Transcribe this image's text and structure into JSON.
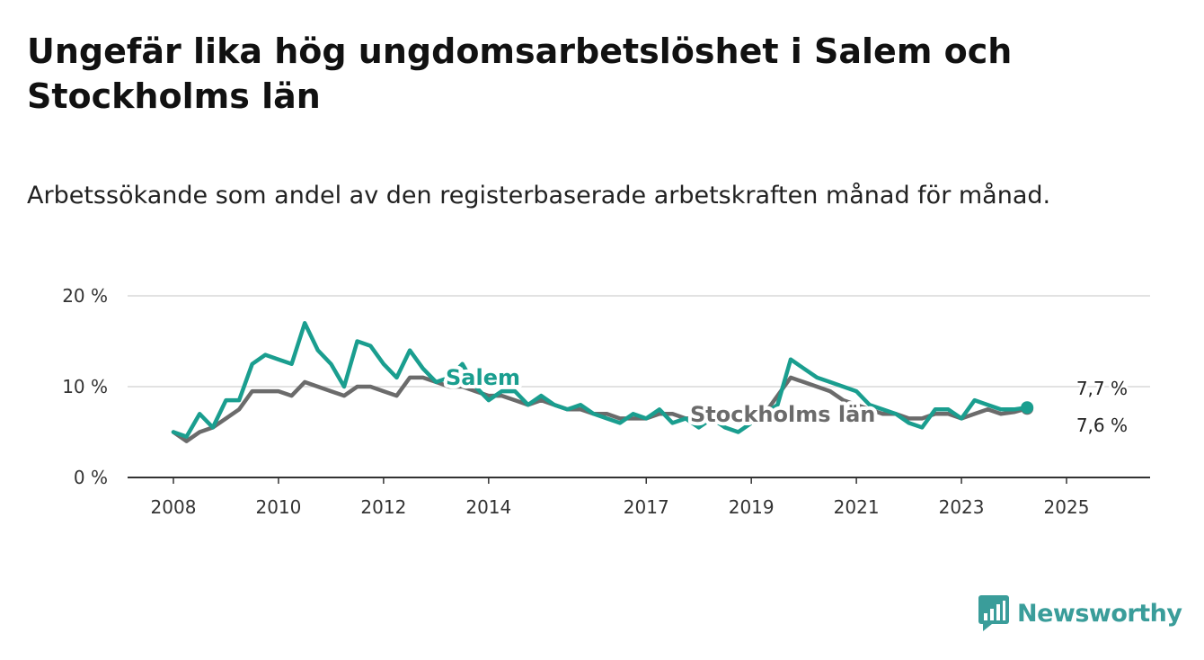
{
  "title": "Ungefär lika hög ungdomsarbetslöshet i Salem och Stockholms län",
  "subtitle": "Arbetssökande som andel av den registerbaserade arbetskraften månad för månad.",
  "brand": {
    "name": "Newsworthy",
    "color": "#3a9d9a",
    "icon": "bar-chart-speech-bubble-icon"
  },
  "chart_data": {
    "type": "line",
    "x_start": 2008.0,
    "x_step": 0.25,
    "xlim": [
      2008.0,
      2025.75
    ],
    "ylim": [
      0,
      20
    ],
    "y_ticks": [
      0,
      10,
      20
    ],
    "y_tick_labels": [
      "0 %",
      "10 %",
      "20 %"
    ],
    "x_ticks": [
      2008,
      2010,
      2012,
      2014,
      2017,
      2019,
      2021,
      2023,
      2025
    ],
    "x_tick_labels": [
      "2008",
      "2010",
      "2012",
      "2014",
      "2017",
      "2019",
      "2021",
      "2023",
      "2025"
    ],
    "grid": true,
    "series": [
      {
        "name": "Salem",
        "color": "#1a9e8f",
        "values": [
          5.0,
          4.5,
          7.0,
          5.5,
          8.5,
          8.5,
          12.5,
          13.5,
          13.0,
          12.5,
          17.0,
          14.0,
          12.5,
          10.0,
          15.0,
          14.5,
          12.5,
          11.0,
          14.0,
          12.0,
          10.5,
          11.0,
          12.5,
          10.0,
          8.5,
          9.5,
          9.5,
          8.0,
          9.0,
          8.0,
          7.5,
          8.0,
          7.0,
          6.5,
          6.0,
          7.0,
          6.5,
          7.5,
          6.0,
          6.5,
          5.5,
          6.5,
          5.5,
          5.0,
          6.0,
          7.0,
          8.0,
          13.0,
          12.0,
          11.0,
          10.5,
          10.0,
          9.5,
          8.0,
          7.5,
          7.0,
          6.0,
          5.5,
          7.5,
          7.5,
          6.5,
          8.5,
          8.0,
          7.5,
          7.5,
          7.7
        ]
      },
      {
        "name": "Stockholms län",
        "color": "#6b6b6b",
        "values": [
          5.0,
          4.0,
          5.0,
          5.5,
          6.5,
          7.5,
          9.5,
          9.5,
          9.5,
          9.0,
          10.5,
          10.0,
          9.5,
          9.0,
          10.0,
          10.0,
          9.5,
          9.0,
          11.0,
          11.0,
          10.5,
          10.0,
          10.0,
          9.5,
          9.0,
          9.0,
          8.5,
          8.0,
          8.5,
          8.0,
          7.5,
          7.5,
          7.0,
          7.0,
          6.5,
          6.5,
          6.5,
          7.0,
          7.0,
          6.5,
          6.5,
          6.5,
          6.5,
          6.5,
          6.5,
          7.0,
          9.0,
          11.0,
          10.5,
          10.0,
          9.5,
          8.5,
          8.0,
          7.5,
          7.0,
          7.0,
          6.5,
          6.5,
          7.0,
          7.0,
          6.5,
          7.0,
          7.5,
          7.0,
          7.2,
          7.6
        ]
      }
    ],
    "series_labels": [
      "Salem",
      "Stockholms län"
    ],
    "end_labels": [
      "7,7 %",
      "7,6 %"
    ]
  }
}
